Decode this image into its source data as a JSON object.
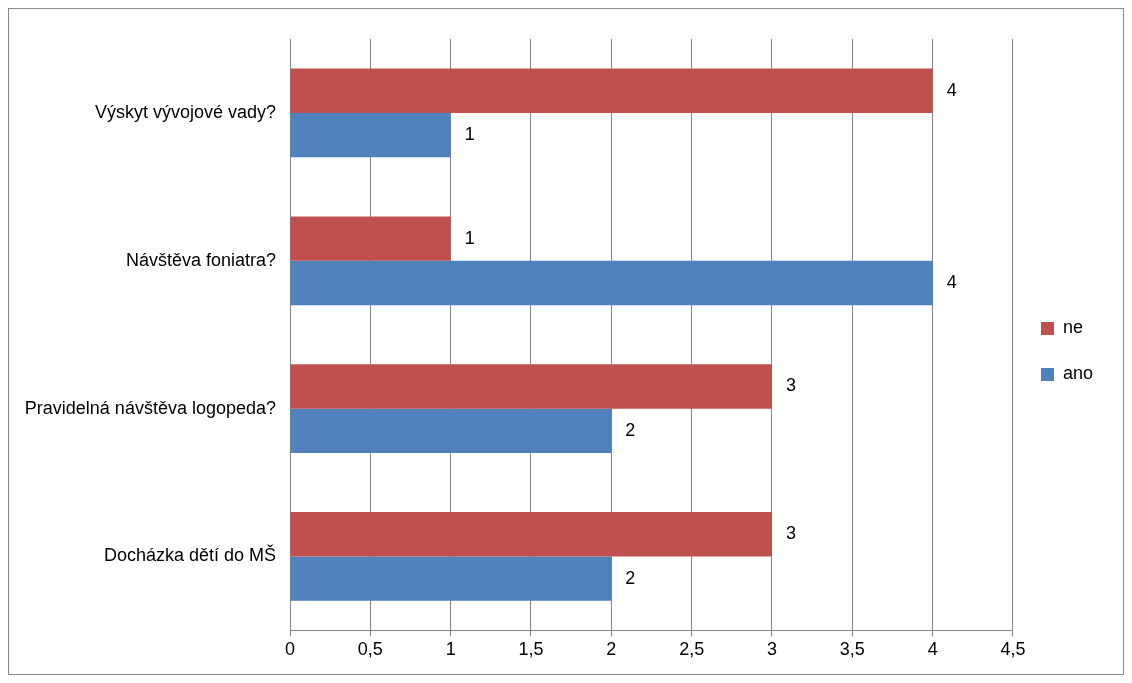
{
  "chart_data": {
    "type": "bar",
    "orientation": "horizontal",
    "categories": [
      "Výskyt vývojové vady?",
      "Návštěva foniatra?",
      "Pravidelná návštěva logopeda?",
      "Docházka dětí do MŠ"
    ],
    "series": [
      {
        "name": "ne",
        "color": "#c0504d",
        "values": [
          4,
          1,
          3,
          3
        ]
      },
      {
        "name": "ano",
        "color": "#4f81bd",
        "values": [
          1,
          4,
          2,
          2
        ]
      }
    ],
    "xlim": [
      0,
      4.5
    ],
    "xticks": [
      0,
      {
        "value": 0.5,
        "label": "0,5"
      },
      1,
      {
        "value": 1.5,
        "label": "1,5"
      },
      2,
      {
        "value": 2.5,
        "label": "2,5"
      },
      3,
      {
        "value": 3.5,
        "label": "3,5"
      },
      4,
      {
        "value": 4.5,
        "label": "4,5"
      }
    ],
    "grid": "x",
    "legend": "right",
    "data_labels": true
  }
}
